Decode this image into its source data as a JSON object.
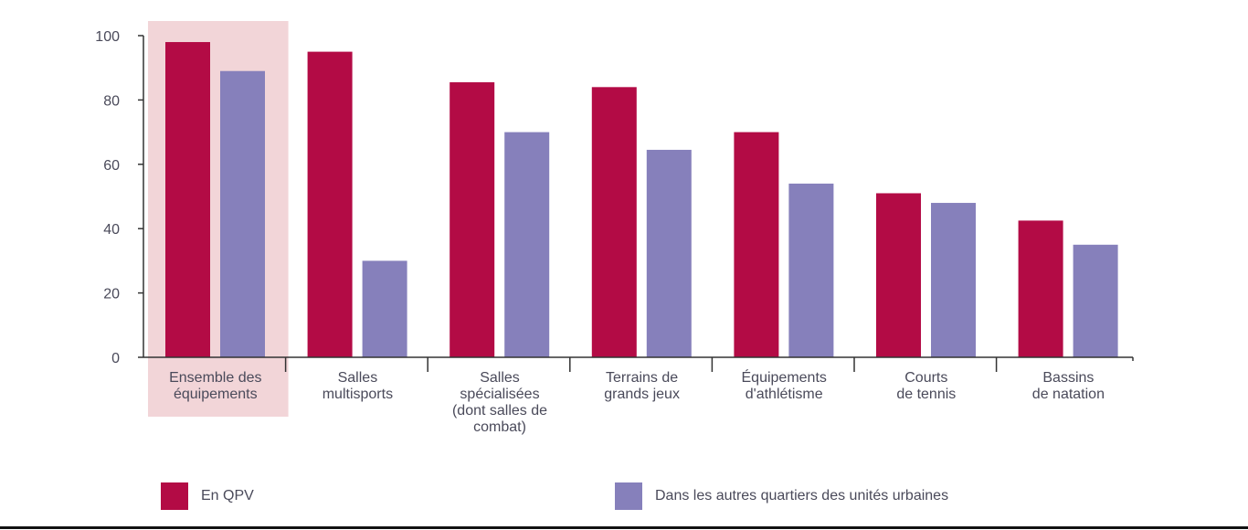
{
  "chart_data": {
    "type": "bar",
    "title": "",
    "xlabel": "",
    "ylabel": "",
    "ylim": [
      0,
      100
    ],
    "yticks": [
      0,
      20,
      40,
      60,
      80,
      100
    ],
    "grid": false,
    "legend_placement": "bottom",
    "highlighted_category": 0,
    "categories": [
      [
        "Ensemble des",
        "équipements"
      ],
      [
        "Salles",
        "multisports"
      ],
      [
        "Salles",
        "spécialisées",
        "(dont salles de",
        "combat)"
      ],
      [
        "Terrains de",
        "grands jeux"
      ],
      [
        "Équipements",
        "d'athlétisme"
      ],
      [
        "Courts",
        "de tennis"
      ],
      [
        "Bassins",
        "de natation"
      ]
    ],
    "series": [
      {
        "name": "En QPV",
        "color": "#b30b45",
        "values": [
          98,
          95,
          85.5,
          84,
          70,
          51,
          42.5
        ]
      },
      {
        "name": "Dans les autres quartiers des unités urbaines",
        "color": "#8680bb",
        "values": [
          89,
          30,
          70,
          64.5,
          54,
          48,
          35
        ]
      }
    ],
    "highlight_color": "#f2d5d8"
  },
  "legend": {
    "items": [
      {
        "label": "En QPV",
        "color": "#b30b45"
      },
      {
        "label": "Dans les autres quartiers des unités urbaines",
        "color": "#8680bb"
      }
    ]
  }
}
